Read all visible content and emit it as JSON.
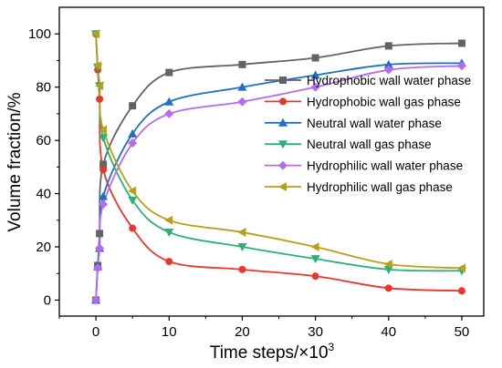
{
  "chart_data": {
    "type": "line",
    "title": "",
    "xlabel": "Time steps/×10",
    "xlabel_superscript": "3",
    "ylabel": "Volume fraction/%",
    "xlim": [
      -5,
      53
    ],
    "ylim": [
      -6,
      110
    ],
    "x_ticks": [
      0,
      10,
      20,
      30,
      40,
      50
    ],
    "y_ticks": [
      0,
      20,
      40,
      60,
      80,
      100
    ],
    "grid": false,
    "legend_position": "right",
    "series": [
      {
        "name": "Hydrophobic wall water phase",
        "color": "#636363",
        "marker": "square",
        "x": [
          0,
          0.25,
          0.5,
          1,
          5,
          10,
          20,
          30,
          40,
          50
        ],
        "y": [
          0,
          13,
          25,
          51,
          73,
          85.5,
          88.5,
          91,
          95.5,
          96.5
        ]
      },
      {
        "name": "Hydrophobic wall gas phase",
        "color": "#e8372b",
        "marker": "circle",
        "x": [
          0,
          0.25,
          0.5,
          1,
          5,
          10,
          20,
          30,
          40,
          50
        ],
        "y": [
          100,
          86.5,
          75.5,
          49,
          27,
          14.5,
          11.5,
          9,
          4.5,
          3.5
        ]
      },
      {
        "name": "Neutral wall water phase",
        "color": "#1f6fc5",
        "marker": "triangle-up",
        "x": [
          0,
          0.25,
          0.5,
          1,
          5,
          10,
          20,
          30,
          40,
          50
        ],
        "y": [
          0,
          12.5,
          19.5,
          39,
          62.5,
          74.5,
          80,
          84.5,
          88.5,
          89
        ]
      },
      {
        "name": "Neutral wall gas phase",
        "color": "#2bb07a",
        "marker": "triangle-down",
        "x": [
          0,
          0.25,
          0.5,
          1,
          5,
          10,
          20,
          30,
          40,
          50
        ],
        "y": [
          100,
          87.5,
          80.5,
          61,
          37.5,
          25.5,
          20,
          15.5,
          11.5,
          11
        ]
      },
      {
        "name": "Hydrophilic wall water phase",
        "color": "#b56bef",
        "marker": "diamond",
        "x": [
          0,
          0.25,
          0.5,
          1,
          5,
          10,
          20,
          30,
          40,
          50
        ],
        "y": [
          0,
          12,
          19.5,
          36,
          59,
          70,
          74.5,
          80,
          86.5,
          88
        ]
      },
      {
        "name": "Hydrophilic wall gas phase",
        "color": "#b5a11a",
        "marker": "triangle-left",
        "x": [
          0,
          0.25,
          0.5,
          1,
          5,
          10,
          20,
          30,
          40,
          50
        ],
        "y": [
          100,
          88,
          80.5,
          64,
          41,
          30,
          25.5,
          20,
          13.5,
          12
        ]
      }
    ]
  }
}
